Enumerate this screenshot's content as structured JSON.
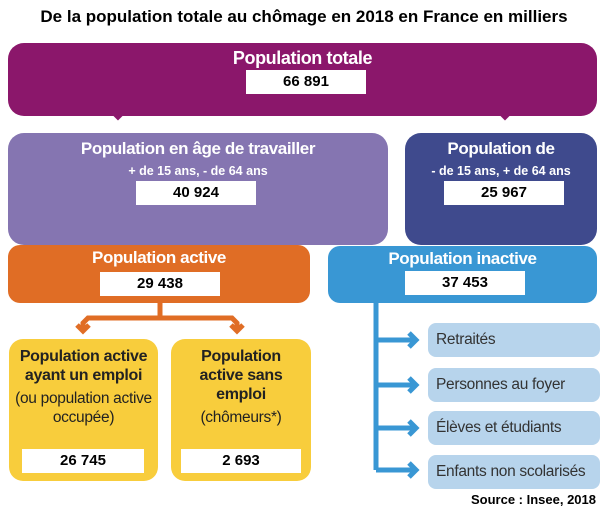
{
  "title": "De la population totale au chômage en 2018 en France en milliers",
  "colors": {
    "total": "#8b176b",
    "working_age": "#8575b1",
    "other_age": "#3f4a8d",
    "active": "#e06d25",
    "inactive": "#3997d4",
    "employed": "#f8cd3c",
    "inactive_items": "#b7d4ec"
  },
  "total": {
    "label": "Population totale",
    "value": "66 891"
  },
  "working_age": {
    "label": "Population en âge de travailler",
    "sub": "+ de 15 ans, - de 64 ans",
    "value": "40 924"
  },
  "other_age": {
    "label": "Population de",
    "sub": "- de 15 ans, + de 64 ans",
    "value": "25 967"
  },
  "active": {
    "label": "Population active",
    "value": "29 438"
  },
  "inactive": {
    "label": "Population inactive",
    "value": "37 453",
    "items": [
      "Retraités",
      "Personnes au foyer",
      "Élèves et étudiants",
      "Enfants non scolarisés"
    ]
  },
  "employed": {
    "label": "Population active ayant un emploi",
    "note": "(ou population active occupée)",
    "value": "26 745"
  },
  "unemployed": {
    "label": "Population active sans emploi",
    "note": "(chômeurs*)",
    "value": "2 693"
  },
  "source": "Source : Insee, 2018"
}
